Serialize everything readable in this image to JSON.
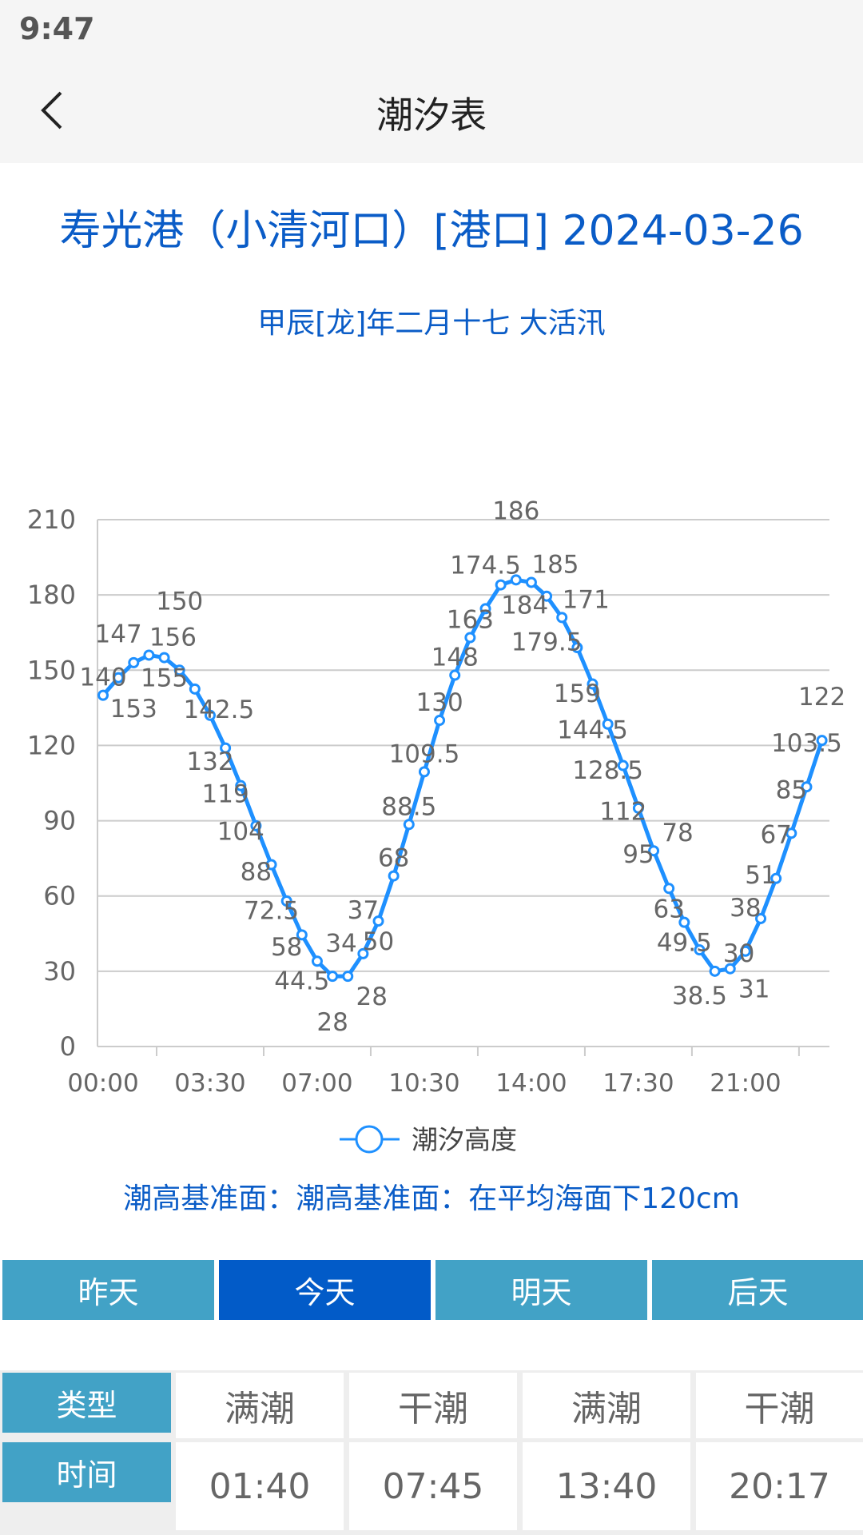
{
  "status_bar": {
    "time": "9:47"
  },
  "header": {
    "title": "潮汐表",
    "back_icon": "chevron-left-icon"
  },
  "station_title": "寿光港（小清河口）[港口]  2024-03-26",
  "lunar_info": "甲辰[龙]年二月十七  大活汛",
  "chart_data": {
    "type": "line",
    "x": [
      "00:00",
      "00:30",
      "01:00",
      "01:30",
      "02:00",
      "02:30",
      "03:00",
      "03:30",
      "04:00",
      "04:30",
      "05:00",
      "05:30",
      "06:00",
      "06:30",
      "07:00",
      "07:30",
      "08:00",
      "08:30",
      "09:00",
      "09:30",
      "10:00",
      "10:30",
      "11:00",
      "11:30",
      "12:00",
      "12:30",
      "13:00",
      "13:30",
      "14:00",
      "14:30",
      "15:00",
      "15:30",
      "16:00",
      "16:30",
      "17:00",
      "17:30",
      "18:00",
      "18:30",
      "19:00",
      "19:30",
      "20:00",
      "20:30",
      "21:00",
      "21:30",
      "22:00",
      "22:30",
      "23:00",
      "23:30"
    ],
    "x_tick_labels": [
      "00:00",
      "03:30",
      "07:00",
      "10:30",
      "14:00",
      "17:30",
      "21:00"
    ],
    "series": [
      {
        "name": "潮汐高度",
        "values": [
          140,
          147,
          153,
          156,
          155,
          150,
          142.5,
          132,
          119,
          104,
          88,
          72.5,
          58,
          44.5,
          34,
          28,
          28,
          37,
          50,
          68,
          88.5,
          109.5,
          130,
          148,
          163,
          174.5,
          184,
          186,
          185,
          179.5,
          171,
          159,
          144.5,
          128.5,
          112,
          95,
          78,
          63,
          49.5,
          38.5,
          30,
          31,
          38,
          51,
          67,
          85,
          103.5,
          122
        ]
      }
    ],
    "ylim": [
      0,
      210
    ],
    "y_ticks": [
      0,
      30,
      60,
      90,
      120,
      150,
      180,
      210
    ],
    "grid": true,
    "legend": "bottom",
    "color": "#1e90ff",
    "data_labels": true
  },
  "datum_text": "潮高基准面：潮高基准面：在平均海面下120cm",
  "tabs": [
    {
      "label": "昨天"
    },
    {
      "label": "今天",
      "active": true
    },
    {
      "label": "明天"
    },
    {
      "label": "后天"
    }
  ],
  "tide_table": {
    "type_header": "类型",
    "time_header": "时间",
    "types": [
      "满潮",
      "干潮",
      "满潮",
      "干潮"
    ],
    "times": [
      "01:40",
      "07:45",
      "13:40",
      "20:17"
    ]
  }
}
